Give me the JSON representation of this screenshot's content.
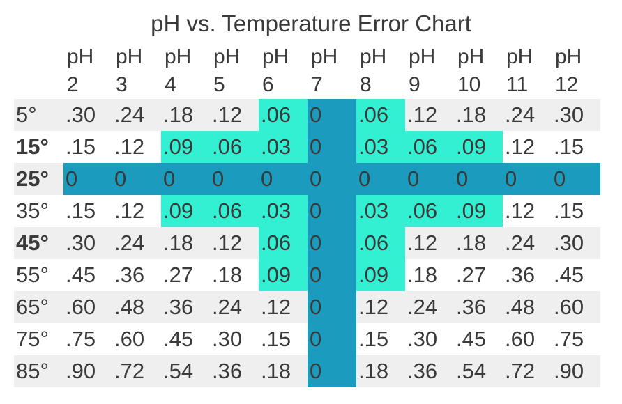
{
  "chart_data": {
    "type": "table",
    "title": "pH vs. Temperature Error Chart",
    "columns": [
      "pH 2",
      "pH 3",
      "pH 4",
      "pH 5",
      "pH 6",
      "pH 7",
      "pH 8",
      "pH 9",
      "pH 10",
      "pH 11",
      "pH 12"
    ],
    "column_headers": [
      [
        "pH",
        "2"
      ],
      [
        "pH",
        "3"
      ],
      [
        "pH",
        "4"
      ],
      [
        "pH",
        "5"
      ],
      [
        "pH",
        "6"
      ],
      [
        "pH",
        "7"
      ],
      [
        "pH",
        "8"
      ],
      [
        "pH",
        "9"
      ],
      [
        "pH",
        "10"
      ],
      [
        "pH",
        "11"
      ],
      [
        "pH",
        "12"
      ]
    ],
    "rows": [
      {
        "label": "5°",
        "values": [
          ".30",
          ".24",
          ".18",
          ".12",
          ".06",
          "0",
          ".06",
          ".12",
          ".18",
          ".24",
          ".30"
        ]
      },
      {
        "label": "15°",
        "values": [
          ".15",
          ".12",
          ".09",
          ".06",
          ".03",
          "0",
          ".03",
          ".06",
          ".09",
          ".12",
          ".15"
        ]
      },
      {
        "label": "25°",
        "values": [
          "0",
          "0",
          "0",
          "0",
          "0",
          "0",
          "0",
          "0",
          "0",
          "0",
          "0"
        ]
      },
      {
        "label": "35°",
        "values": [
          ".15",
          ".12",
          ".09",
          ".06",
          ".03",
          "0",
          ".03",
          ".06",
          ".09",
          ".12",
          ".15"
        ]
      },
      {
        "label": "45°",
        "values": [
          ".30",
          ".24",
          ".18",
          ".12",
          ".06",
          "0",
          ".06",
          ".12",
          ".18",
          ".24",
          ".30"
        ]
      },
      {
        "label": "55°",
        "values": [
          ".45",
          ".36",
          ".27",
          ".18",
          ".09",
          "0",
          ".09",
          ".18",
          ".27",
          ".36",
          ".45"
        ]
      },
      {
        "label": "65°",
        "values": [
          ".60",
          ".48",
          ".36",
          ".24",
          ".12",
          "0",
          ".12",
          ".24",
          ".36",
          ".48",
          ".60"
        ]
      },
      {
        "label": "75°",
        "values": [
          ".75",
          ".60",
          ".45",
          ".30",
          ".15",
          "0",
          ".15",
          ".30",
          ".45",
          ".60",
          ".75"
        ]
      },
      {
        "label": "85°",
        "values": [
          ".90",
          ".72",
          ".54",
          ".36",
          ".18",
          "0",
          ".18",
          ".36",
          ".54",
          ".72",
          ".90"
        ]
      }
    ],
    "bold_rows": [
      1,
      2,
      4
    ],
    "neutral_row": 2,
    "neutral_column": 5,
    "highlight_threshold": 0.1,
    "colors": {
      "neutral": "#1b9bbd",
      "highlight": "#33f0d2",
      "stripe": "#efefef",
      "text": "#3a3a3a"
    }
  }
}
